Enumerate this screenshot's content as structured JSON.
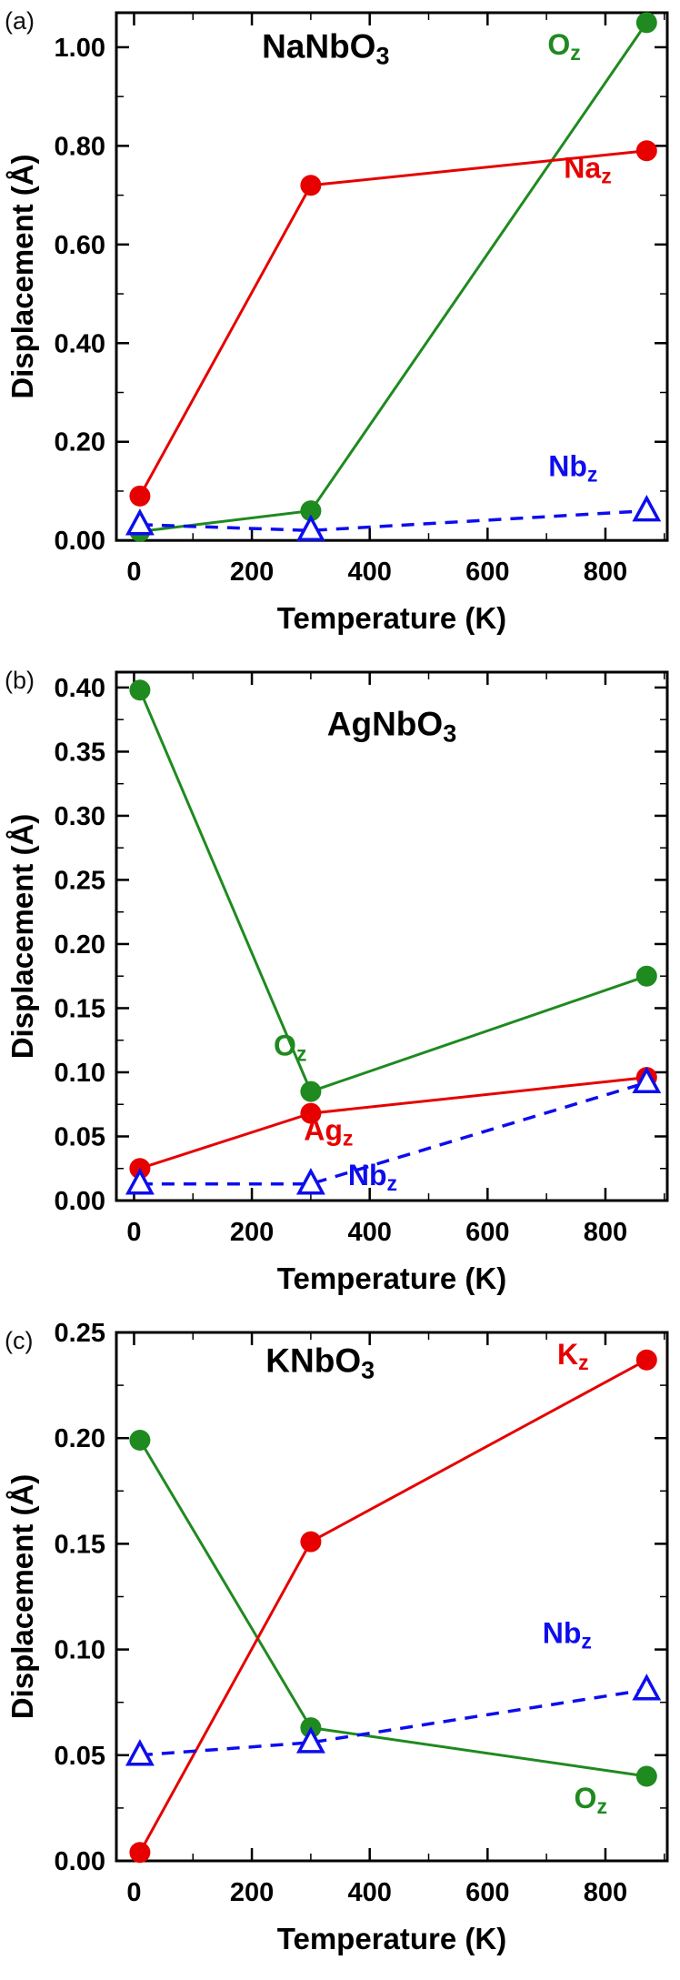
{
  "figure": {
    "description": "Three stacked panels of atomic displacement vs temperature",
    "panel_letters": [
      "(a)",
      "(b)",
      "(c)"
    ]
  },
  "colors": {
    "red": "#e60000",
    "green": "#1f8a1f",
    "blue": "#0d0dee",
    "axis": "#000000",
    "marker_fill_open": "#ffffff"
  },
  "chart_data": [
    {
      "type": "line",
      "panel_label": "(a)",
      "title": {
        "main": "NaNbO",
        "sub": "3"
      },
      "title_frac": {
        "x": 0.38,
        "y": 0.085
      },
      "xlabel": "Temperature (K)",
      "ylabel": "Displacement (Å)",
      "x": [
        10,
        300,
        870
      ],
      "xlim": [
        -30,
        905
      ],
      "xticks": [
        0,
        200,
        400,
        600,
        800
      ],
      "x_minor_step": 100,
      "ylim": [
        0,
        1.07
      ],
      "yticks": [
        0,
        0.2,
        0.4,
        0.6,
        0.8,
        1.0
      ],
      "y_minor_step": 0.1,
      "grid": false,
      "legend_position": "inline-annotations",
      "series": [
        {
          "name": "Oz",
          "label": {
            "main": "O",
            "sub": "z"
          },
          "color_key": "green",
          "marker": "circle-filled",
          "line": "solid",
          "values": [
            0.018,
            0.06,
            1.05
          ],
          "label_pos": {
            "x": 730,
            "y": 0.985
          }
        },
        {
          "name": "Naz",
          "label": {
            "main": "Na",
            "sub": "z"
          },
          "color_key": "red",
          "marker": "circle-filled",
          "line": "solid",
          "values": [
            0.09,
            0.72,
            0.79
          ],
          "label_pos": {
            "x": 770,
            "y": 0.735
          }
        },
        {
          "name": "Nbz",
          "label": {
            "main": "Nb",
            "sub": "z"
          },
          "color_key": "blue",
          "marker": "triangle-open",
          "line": "dashed",
          "values": [
            0.032,
            0.02,
            0.06
          ],
          "label_pos": {
            "x": 745,
            "y": 0.13
          }
        }
      ]
    },
    {
      "type": "line",
      "panel_label": "(b)",
      "title": {
        "main": "AgNbO",
        "sub": "3"
      },
      "title_frac": {
        "x": 0.5,
        "y": 0.12
      },
      "xlabel": "Temperature (K)",
      "ylabel": "Displacement (Å)",
      "x": [
        10,
        300,
        870
      ],
      "xlim": [
        -30,
        905
      ],
      "xticks": [
        0,
        200,
        400,
        600,
        800
      ],
      "x_minor_step": 100,
      "ylim": [
        0,
        0.412
      ],
      "yticks": [
        0,
        0.05,
        0.1,
        0.15,
        0.2,
        0.25,
        0.3,
        0.35,
        0.4
      ],
      "y_minor_step": 0.025,
      "grid": false,
      "legend_position": "inline-annotations",
      "series": [
        {
          "name": "Oz",
          "label": {
            "main": "O",
            "sub": "z"
          },
          "color_key": "green",
          "marker": "circle-filled",
          "line": "solid",
          "values": [
            0.398,
            0.085,
            0.175
          ],
          "label_pos": {
            "x": 265,
            "y": 0.113
          }
        },
        {
          "name": "Agz",
          "label": {
            "main": "Ag",
            "sub": "z"
          },
          "color_key": "red",
          "marker": "circle-filled",
          "line": "solid",
          "values": [
            0.025,
            0.068,
            0.096
          ],
          "label_pos": {
            "x": 330,
            "y": 0.047
          }
        },
        {
          "name": "Nbz",
          "label": {
            "main": "Nb",
            "sub": "z"
          },
          "color_key": "blue",
          "marker": "triangle-open",
          "line": "dashed",
          "values": [
            0.013,
            0.013,
            0.092
          ],
          "label_pos": {
            "x": 405,
            "y": 0.012
          }
        }
      ]
    },
    {
      "type": "line",
      "panel_label": "(c)",
      "title": {
        "main": "KNbO",
        "sub": "3"
      },
      "title_frac": {
        "x": 0.37,
        "y": 0.075
      },
      "xlabel": "Temperature (K)",
      "ylabel": "Displacement (Å)",
      "x": [
        10,
        300,
        870
      ],
      "xlim": [
        -30,
        905
      ],
      "xticks": [
        0,
        200,
        400,
        600,
        800
      ],
      "x_minor_step": 100,
      "ylim": [
        0,
        0.25
      ],
      "yticks": [
        0,
        0.05,
        0.1,
        0.15,
        0.2,
        0.25
      ],
      "y_minor_step": 0.025,
      "grid": false,
      "legend_position": "inline-annotations",
      "series": [
        {
          "name": "Oz",
          "label": {
            "main": "O",
            "sub": "z"
          },
          "color_key": "green",
          "marker": "circle-filled",
          "line": "solid",
          "values": [
            0.199,
            0.063,
            0.04
          ],
          "label_pos": {
            "x": 775,
            "y": 0.025
          }
        },
        {
          "name": "Kz",
          "label": {
            "main": "K",
            "sub": "z"
          },
          "color_key": "red",
          "marker": "circle-filled",
          "line": "solid",
          "values": [
            0.004,
            0.151,
            0.237
          ],
          "label_pos": {
            "x": 745,
            "y": 0.235
          }
        },
        {
          "name": "Nbz",
          "label": {
            "main": "Nb",
            "sub": "z"
          },
          "color_key": "blue",
          "marker": "triangle-open",
          "line": "dashed",
          "values": [
            0.05,
            0.056,
            0.081
          ],
          "label_pos": {
            "x": 735,
            "y": 0.103
          }
        }
      ]
    }
  ]
}
